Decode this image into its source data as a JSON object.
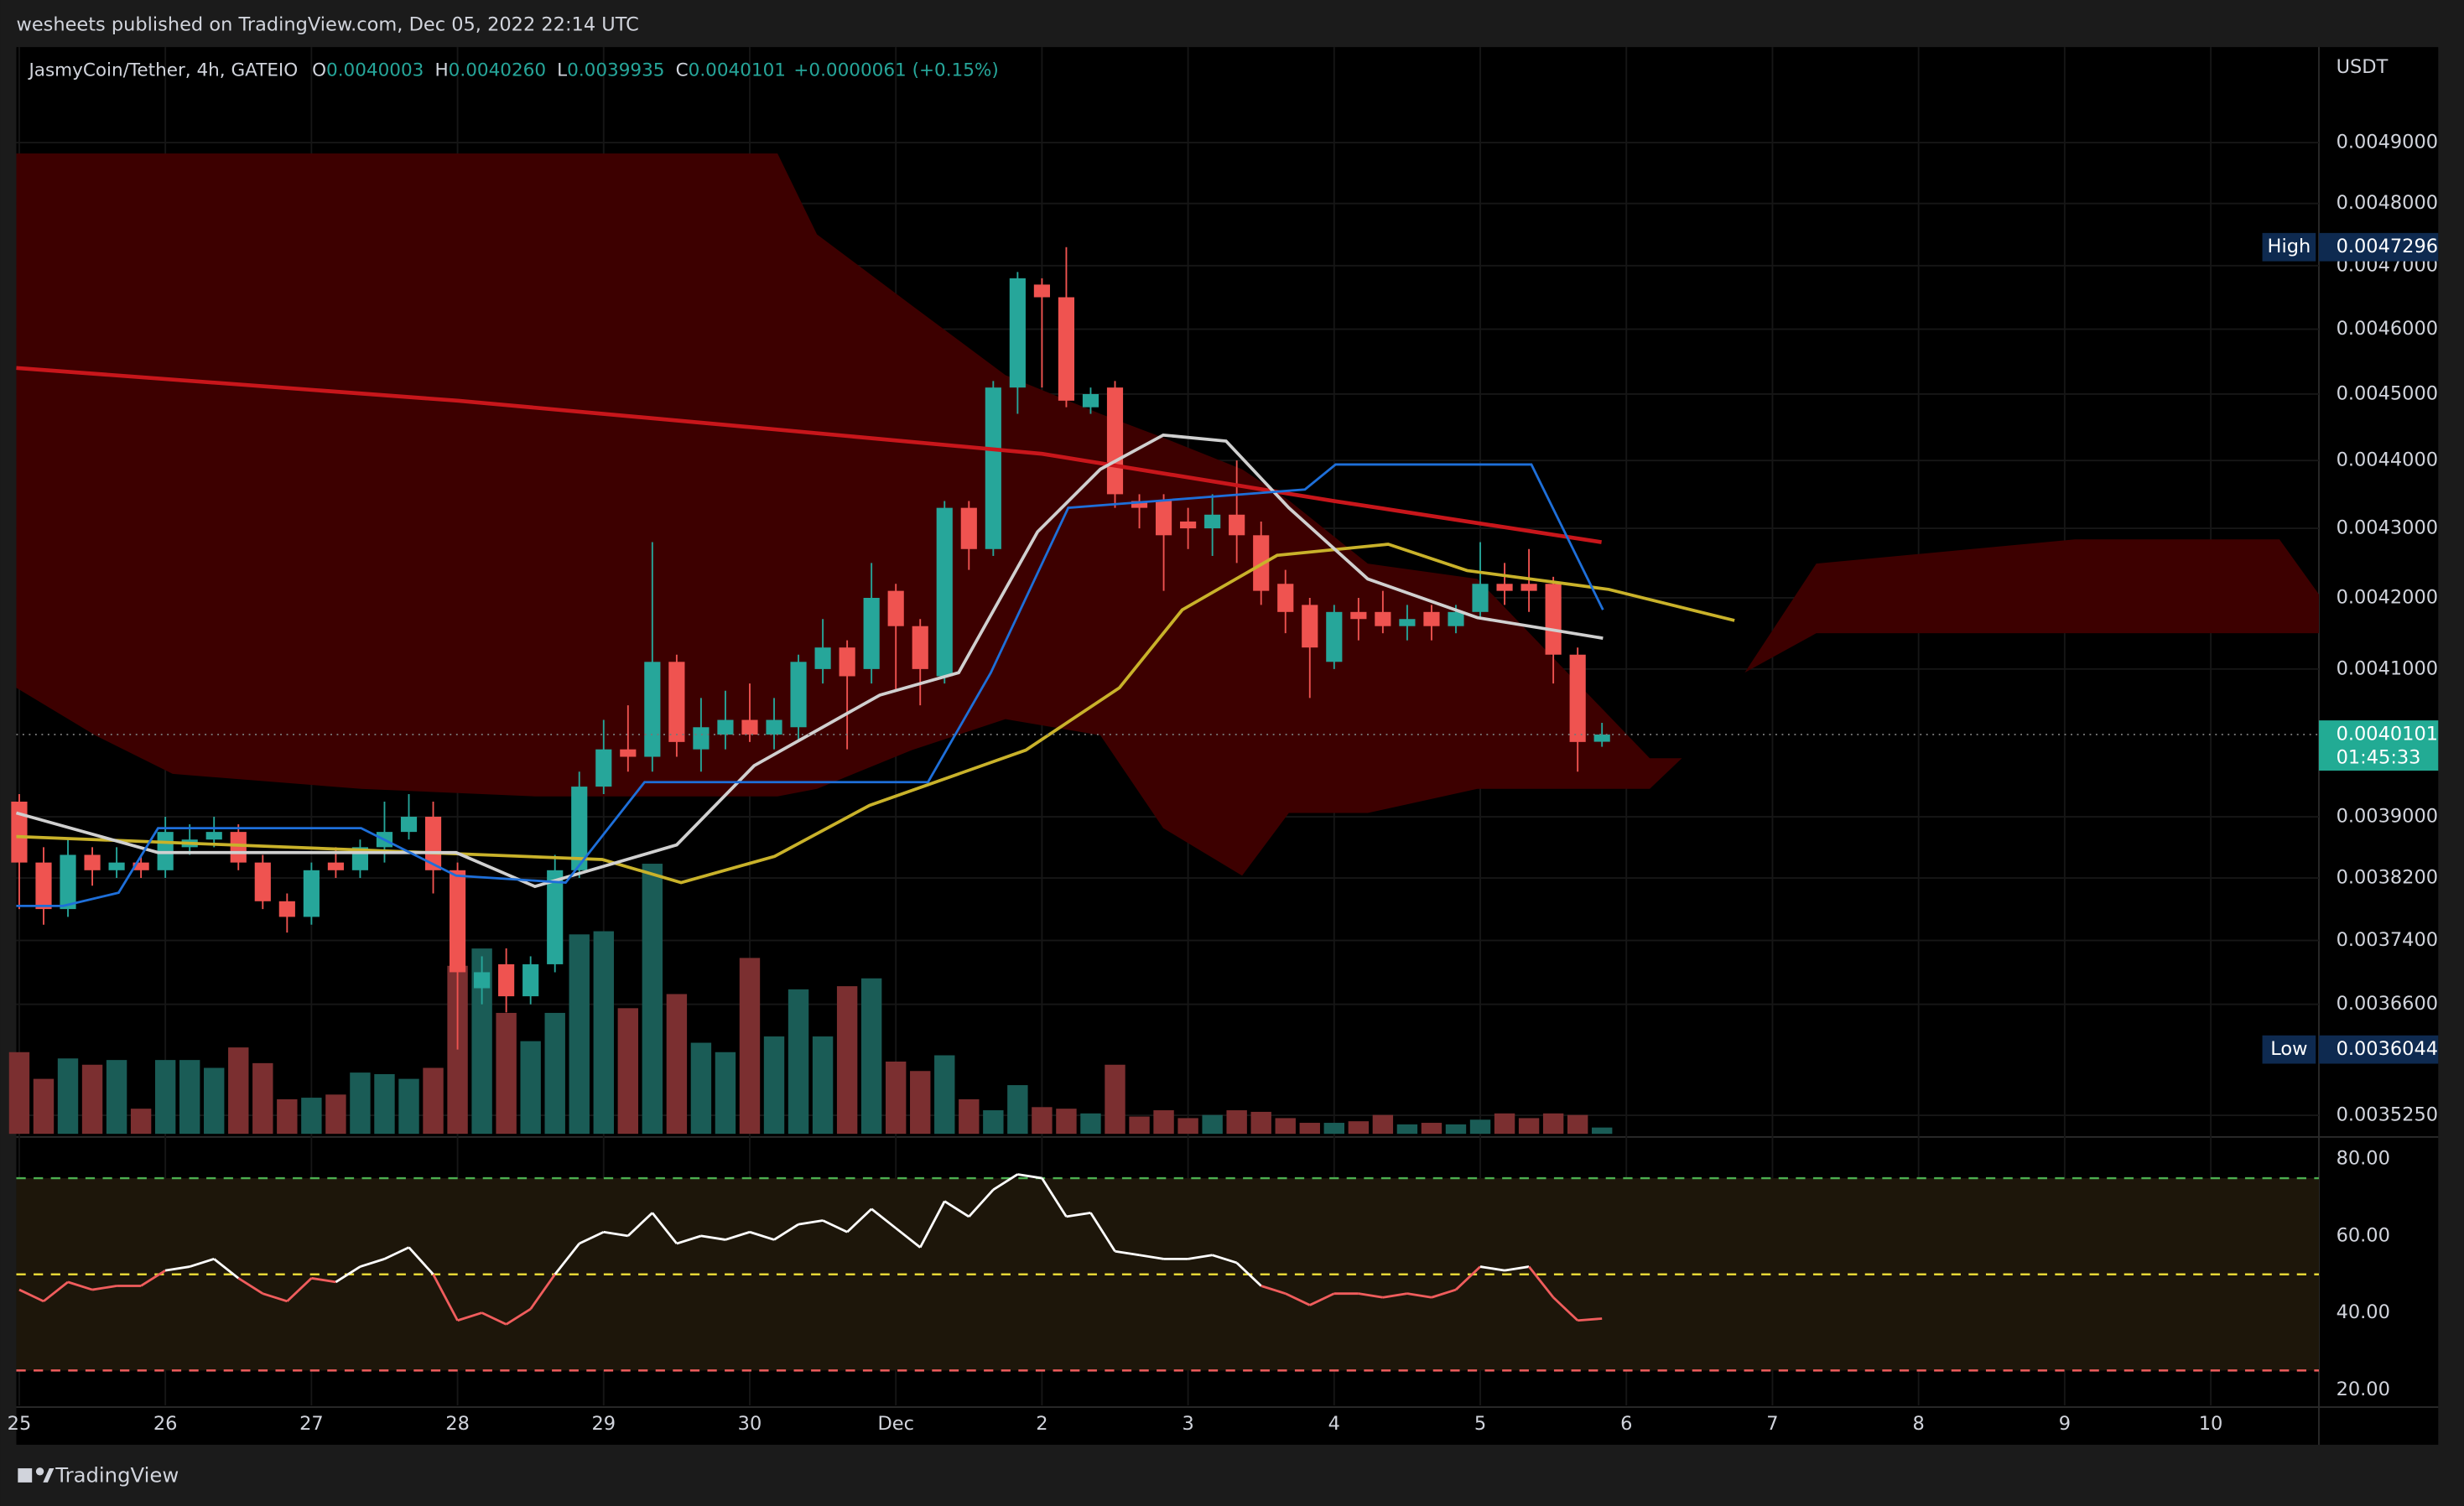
{
  "header": {
    "published": "wesheets published on TradingView.com, Dec 05, 2022 22:14 UTC",
    "brand": "TradingView"
  },
  "chart_data": {
    "type": "candlestick",
    "log_scale": true,
    "grid": true,
    "legend": {
      "symbol": "JasmyCoin/Tether, 4h, GATEIO",
      "items": [
        {
          "key": "O",
          "value": "0.0040003"
        },
        {
          "key": "H",
          "value": "0.0040260"
        },
        {
          "key": "L",
          "value": "0.0039935"
        },
        {
          "key": "C",
          "value": "0.0040101"
        }
      ],
      "change": "+0.0000061 (+0.15%)"
    },
    "y_unit": "USDT",
    "up_color": "#26a69a",
    "down_color": "#ef5350",
    "volume_up_color": "#1a5c56",
    "volume_down_color": "#7b2f30",
    "xlim": [
      24.98,
      40.74
    ],
    "xticks": [
      25,
      26,
      27,
      28,
      29,
      30,
      {
        "value": 31,
        "label": "Dec"
      },
      {
        "value": 32,
        "label": "2"
      },
      {
        "value": 33,
        "label": "3"
      },
      {
        "value": 34,
        "label": "4"
      },
      {
        "value": 35,
        "label": "5"
      },
      {
        "value": 36,
        "label": "6"
      },
      {
        "value": 37,
        "label": "7"
      },
      {
        "value": 38,
        "label": "8"
      },
      {
        "value": 39,
        "label": "9"
      },
      {
        "value": 40,
        "label": "10"
      }
    ],
    "ylim": [
      0.003503,
      0.005061
    ],
    "yticks": [
      {
        "value": 0.0049,
        "label": "0.0049000"
      },
      {
        "value": 0.0048,
        "label": "0.0048000"
      },
      {
        "value": 0.0047,
        "label": "0.0047000"
      },
      {
        "value": 0.0046,
        "label": "0.0046000"
      },
      {
        "value": 0.0045,
        "label": "0.0045000"
      },
      {
        "value": 0.0044,
        "label": "0.0044000"
      },
      {
        "value": 0.0043,
        "label": "0.0043000"
      },
      {
        "value": 0.0042,
        "label": "0.0042000"
      },
      {
        "value": 0.0041,
        "label": "0.0041000"
      },
      {
        "value": 0.0039,
        "label": "0.0039000"
      },
      {
        "value": 0.00382,
        "label": "0.0038200"
      },
      {
        "value": 0.00374,
        "label": "0.0037400"
      },
      {
        "value": 0.00366,
        "label": "0.0036600"
      },
      {
        "value": 0.003525,
        "label": "0.0035250"
      }
    ],
    "x": [
      25,
      25.1667,
      25.3333,
      25.5,
      25.6667,
      25.8333,
      26,
      26.1667,
      26.3333,
      26.5,
      26.6667,
      26.8333,
      27,
      27.1667,
      27.3333,
      27.5,
      27.6667,
      27.8333,
      28,
      28.1667,
      28.3333,
      28.5,
      28.6667,
      28.8333,
      29,
      29.1667,
      29.3333,
      29.5,
      29.6667,
      29.8333,
      30,
      30.1667,
      30.3333,
      30.5,
      30.6667,
      30.8333,
      31,
      31.1667,
      31.3333,
      31.5,
      31.6667,
      31.8333,
      32,
      32.1667,
      32.3333,
      32.5,
      32.6667,
      32.8333,
      33,
      33.1667,
      33.3333,
      33.5,
      33.6667,
      33.8333,
      34,
      34.1667,
      34.3333,
      34.5,
      34.6667,
      34.8333,
      35,
      35.1667,
      35.3333,
      35.5,
      35.6667,
      35.8333
    ],
    "open": [
      0.00392,
      0.00384,
      0.00378,
      0.00385,
      0.00383,
      0.00384,
      0.00383,
      0.00386,
      0.00387,
      0.00388,
      0.00384,
      0.00379,
      0.00377,
      0.00384,
      0.00383,
      0.00386,
      0.00388,
      0.0039,
      0.00383,
      0.00368,
      0.00371,
      0.00367,
      0.00371,
      0.00383,
      0.00394,
      0.00399,
      0.00398,
      0.00411,
      0.00399,
      0.00401,
      0.00403,
      0.00401,
      0.00402,
      0.0041,
      0.00413,
      0.0041,
      0.00421,
      0.00416,
      0.00409,
      0.00433,
      0.00427,
      0.00451,
      0.00467,
      0.00465,
      0.00448,
      0.00451,
      0.00434,
      0.00434,
      0.00431,
      0.0043,
      0.00432,
      0.00429,
      0.00422,
      0.00419,
      0.00411,
      0.00418,
      0.00418,
      0.00416,
      0.00418,
      0.00416,
      0.00418,
      0.00422,
      0.00422,
      0.00422,
      0.00412,
      0.0040003
    ],
    "high": [
      0.00393,
      0.00386,
      0.00387,
      0.00386,
      0.00386,
      0.00385,
      0.0039,
      0.00389,
      0.0039,
      0.00389,
      0.00385,
      0.0038,
      0.00384,
      0.00386,
      0.00387,
      0.00392,
      0.00393,
      0.00392,
      0.00384,
      0.00372,
      0.00373,
      0.00372,
      0.00385,
      0.00396,
      0.00403,
      0.00405,
      0.00428,
      0.00412,
      0.00406,
      0.00407,
      0.00408,
      0.00406,
      0.00412,
      0.00417,
      0.00414,
      0.00425,
      0.00422,
      0.00417,
      0.00434,
      0.00434,
      0.00452,
      0.00469,
      0.00468,
      0.0047296,
      0.00451,
      0.00452,
      0.00435,
      0.00435,
      0.00433,
      0.00435,
      0.0044,
      0.00431,
      0.00424,
      0.0042,
      0.00419,
      0.0042,
      0.00421,
      0.00419,
      0.00419,
      0.00419,
      0.00428,
      0.00425,
      0.00427,
      0.00423,
      0.00413,
      0.004026
    ],
    "low": [
      0.00378,
      0.00376,
      0.00377,
      0.00381,
      0.00382,
      0.00382,
      0.00382,
      0.00385,
      0.00386,
      0.00383,
      0.00378,
      0.00375,
      0.00376,
      0.00382,
      0.00382,
      0.00384,
      0.00387,
      0.0038,
      0.0036044,
      0.00366,
      0.00365,
      0.00366,
      0.0037,
      0.00382,
      0.00393,
      0.00396,
      0.00396,
      0.00398,
      0.00396,
      0.00399,
      0.004,
      0.00399,
      0.004,
      0.00408,
      0.00399,
      0.00408,
      0.00407,
      0.00405,
      0.00408,
      0.00424,
      0.00426,
      0.00447,
      0.00451,
      0.00448,
      0.00447,
      0.00433,
      0.0043,
      0.00421,
      0.00427,
      0.00426,
      0.00425,
      0.00419,
      0.00415,
      0.00406,
      0.0041,
      0.00414,
      0.00415,
      0.00414,
      0.00414,
      0.00415,
      0.00417,
      0.00419,
      0.00418,
      0.00408,
      0.00396,
      0.0039935
    ],
    "close": [
      0.00384,
      0.00378,
      0.00385,
      0.00383,
      0.00384,
      0.00383,
      0.00388,
      0.00387,
      0.00388,
      0.00384,
      0.00379,
      0.00377,
      0.00383,
      0.00383,
      0.00386,
      0.00388,
      0.0039,
      0.00383,
      0.0037,
      0.0037,
      0.00367,
      0.00371,
      0.00383,
      0.00394,
      0.00399,
      0.00398,
      0.00411,
      0.004,
      0.00402,
      0.00403,
      0.00401,
      0.00403,
      0.00411,
      0.00413,
      0.00409,
      0.0042,
      0.00416,
      0.0041,
      0.00433,
      0.00427,
      0.00451,
      0.00468,
      0.00465,
      0.00449,
      0.0045,
      0.00435,
      0.00433,
      0.00429,
      0.0043,
      0.00432,
      0.00429,
      0.00421,
      0.00418,
      0.00413,
      0.00418,
      0.00417,
      0.00416,
      0.00417,
      0.00416,
      0.00418,
      0.00422,
      0.00421,
      0.00421,
      0.00412,
      0.004,
      0.0040101
    ],
    "volume": [
      52,
      35,
      48,
      44,
      47,
      16,
      47,
      47,
      42,
      55,
      45,
      22,
      23,
      25,
      39,
      38,
      35,
      42,
      107,
      118,
      77,
      59,
      77,
      127,
      129,
      80,
      172,
      89,
      58,
      52,
      112,
      62,
      92,
      62,
      94,
      99,
      46,
      40,
      50,
      22,
      15,
      31,
      17,
      16,
      13,
      44,
      11,
      15,
      10,
      12,
      15,
      14,
      10,
      7,
      7,
      8,
      12,
      6,
      7,
      6,
      9,
      13,
      10,
      13,
      12,
      4
    ],
    "overlays": [
      {
        "color": "#c8161b",
        "width": 2.5,
        "x": [
          24.98,
          28,
          30,
          32,
          34,
          35.83
        ],
        "values": [
          0.00454,
          0.00449,
          0.00445,
          0.00441,
          0.00434,
          0.00428
        ]
      },
      {
        "color": "#c9b22a",
        "width": 2,
        "x": [
          24.98,
          28.99,
          29.53,
          30.17,
          30.82,
          31.89,
          32.53,
          32.96,
          33.61,
          34.37,
          34.91,
          35.88,
          36.74
        ],
        "values": [
          0.003874,
          0.003844,
          0.003814,
          0.003848,
          0.003915,
          0.003989,
          0.004074,
          0.004183,
          0.004261,
          0.004277,
          0.004239,
          0.004212,
          0.004168
        ]
      },
      {
        "color": "#d0d0d0",
        "width": 2,
        "x": [
          24.98,
          25.95,
          27.99,
          28.53,
          29.5,
          30.03,
          30.89,
          31.43,
          31.97,
          32.4,
          32.83,
          33.26,
          33.69,
          34.23,
          34.98,
          35.84
        ],
        "values": [
          0.003905,
          0.003853,
          0.003853,
          0.003809,
          0.003863,
          0.003968,
          0.004064,
          0.004095,
          0.004295,
          0.004387,
          0.004438,
          0.004429,
          0.00433,
          0.004227,
          0.004172,
          0.004143
        ]
      },
      {
        "color": "#1e6fd9",
        "width": 1.5,
        "x": [
          24.98,
          25.3,
          25.68,
          25.95,
          27.34,
          27.99,
          28.74,
          29.28,
          31.22,
          31.65,
          32.18,
          33.8,
          34.01,
          35.35,
          35.84
        ],
        "values": [
          0.003784,
          0.003784,
          0.003801,
          0.003885,
          0.003885,
          0.003823,
          0.003814,
          0.003946,
          0.003946,
          0.004095,
          0.00433,
          0.004357,
          0.004394,
          0.004394,
          0.004183
        ]
      }
    ],
    "cloud": {
      "color": "#3d0000",
      "x": [
        24.98,
        25.52,
        26.05,
        27.34,
        28.53,
        30.19,
        30.46,
        31.11,
        31.75,
        32.4,
        32.83,
        33.37,
        33.69,
        34.23,
        34.98,
        36.16,
        36.38,
        36.81,
        37.3,
        39.07,
        40.47,
        40.74
      ],
      "upper": [
        0.004882,
        0.004882,
        0.004882,
        0.004882,
        0.004882,
        0.004882,
        0.00475,
        0.004637,
        0.004529,
        0.00447,
        0.004434,
        0.004387,
        0.004341,
        0.004249,
        0.004227,
        0.003978,
        0.003978,
        0.004095,
        0.004249,
        0.004284,
        0.004284,
        0.004205
      ],
      "lower": [
        0.004074,
        0.004009,
        0.003957,
        0.003937,
        0.003927,
        0.003927,
        0.003937,
        0.003989,
        0.004031,
        0.004009,
        0.003885,
        0.003823,
        0.003905,
        0.003905,
        0.003937,
        0.003937,
        0.003978,
        0.004095,
        0.00415,
        0.00415,
        0.00415,
        0.00415
      ]
    },
    "high_label": {
      "label": "High",
      "value": 0.0047296
    },
    "low_label": {
      "label": "Low",
      "value": 0.0036044
    },
    "last_price": {
      "value": 0.0040101,
      "countdown": "01:45:33",
      "color": "#22ab94"
    },
    "rsi": {
      "ylim": [
        15.9,
        84.9
      ],
      "yticks": [
        {
          "value": 80,
          "label": "80.00"
        },
        {
          "value": 60,
          "label": "60.00"
        },
        {
          "value": 40,
          "label": "40.00"
        },
        {
          "value": 20,
          "label": "20.00"
        }
      ],
      "bands": [
        {
          "value": 75,
          "color": "#4caf50"
        },
        {
          "value": 50,
          "color": "#e5d636"
        },
        {
          "value": 25,
          "color": "#f05d5d"
        }
      ],
      "up_color": "#ffffff",
      "down_color": "#f05d5d",
      "mid": 50,
      "values": [
        46,
        43,
        48,
        46,
        47,
        47,
        51,
        52,
        54,
        49,
        45,
        43,
        49,
        48,
        52,
        54,
        57,
        50,
        38,
        40,
        37,
        41,
        50,
        58,
        61,
        60,
        66,
        58,
        60,
        59,
        61,
        59,
        63,
        64,
        61,
        67,
        62,
        57,
        69,
        65,
        72,
        76,
        75,
        65,
        66,
        56,
        55,
        54,
        54,
        55,
        53,
        47,
        45,
        42,
        45,
        45,
        44,
        45,
        44,
        46,
        52,
        51,
        52,
        44,
        38,
        38.5
      ]
    }
  }
}
